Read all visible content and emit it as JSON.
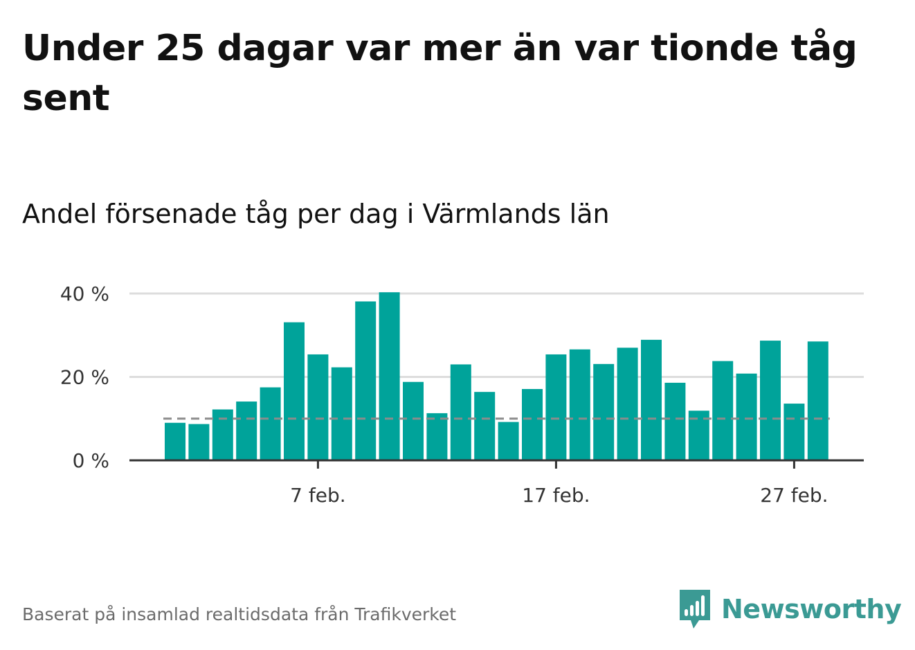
{
  "header": {
    "title": "Under 25 dagar var mer än var tionde tåg sent",
    "subtitle": "Andel försenade tåg per dag i Värmlands län"
  },
  "footer": {
    "source": "Baserat på insamlad realtidsdata från Trafikverket",
    "brand": "Newsworthy",
    "brand_icon": "newsworthy-logo-icon"
  },
  "colors": {
    "bar": "#00a39a",
    "reference_line": "#8c8c8c",
    "grid": "#dddddd",
    "axis": "#333333",
    "brand": "#3b9a94"
  },
  "chart_data": {
    "type": "bar",
    "x_start_day": 1,
    "month_label": "feb.",
    "values": [
      9,
      8.7,
      12.2,
      14.1,
      17.5,
      33.1,
      25.4,
      22.3,
      38.1,
      40.3,
      18.8,
      11.3,
      23.0,
      16.4,
      9.2,
      17.1,
      25.4,
      26.6,
      23.1,
      27.0,
      28.9,
      18.6,
      11.9,
      23.8,
      20.8,
      28.7,
      13.6,
      28.5
    ],
    "reference_value": 10,
    "reference_style": "dashed",
    "xticks": [
      {
        "day": 7,
        "label": "7 feb."
      },
      {
        "day": 17,
        "label": "17 feb."
      },
      {
        "day": 27,
        "label": "27 feb."
      }
    ],
    "yticks": [
      {
        "value": 0,
        "label": "0 %"
      },
      {
        "value": 20,
        "label": "20 %"
      },
      {
        "value": 40,
        "label": "40 %"
      }
    ],
    "ylim": [
      0,
      40
    ],
    "grid": true,
    "xlabel": "",
    "ylabel": ""
  }
}
